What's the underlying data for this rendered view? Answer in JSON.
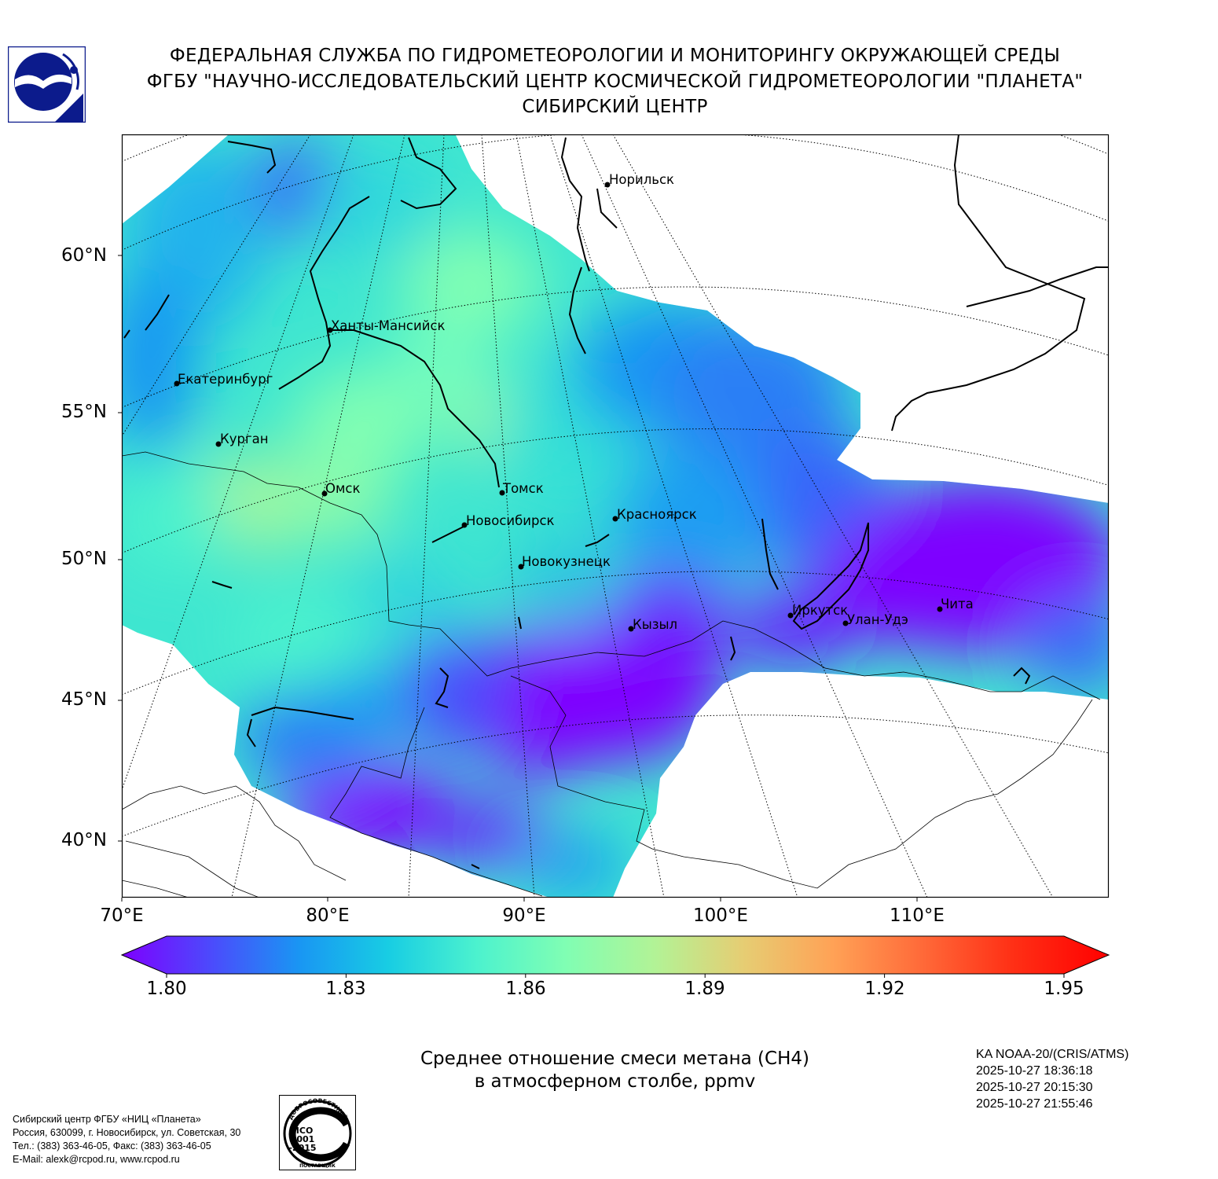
{
  "header": {
    "line1": "ФЕДЕРАЛЬНАЯ СЛУЖБА ПО ГИДРОМЕТЕОРОЛОГИИ И МОНИТОРИНГУ ОКРУЖАЮЩЕЙ СРЕДЫ",
    "line2": "ФГБУ \"НАУЧНО-ИССЛЕДОВАТЕЛЬСКИЙ ЦЕНТР КОСМИЧЕСКОЙ ГИДРОМЕТЕОРОЛОГИИ \"ПЛАНЕТА\"",
    "line3": "СИБИРСКИЙ ЦЕНТР"
  },
  "map": {
    "lat_labels": [
      "60°N",
      "55°N",
      "50°N",
      "45°N",
      "40°N"
    ],
    "lon_labels": [
      "70°E",
      "80°E",
      "90°E",
      "100°E",
      "110°E"
    ],
    "cities": [
      "Норильск",
      "Ханты-Мансийск",
      "Екатеринбург",
      "Курган",
      "Омск",
      "Томск",
      "Новосибирск",
      "Красноярск",
      "Новокузнецк",
      "Кызыл",
      "Иркутск",
      "Улан-Удэ",
      "Чита"
    ]
  },
  "colorbar": {
    "ticks": [
      "1.80",
      "1.83",
      "1.86",
      "1.89",
      "1.92",
      "1.95"
    ],
    "min": 1.8,
    "max": 1.95,
    "colors": [
      "#7e00ff",
      "#4c4afc",
      "#1996f3",
      "#18cde3",
      "#4cf2ce",
      "#80feb3",
      "#b2f396",
      "#e6cd73",
      "#ffa256",
      "#ff6a39",
      "#ff3116",
      "#ff0000"
    ]
  },
  "product": {
    "title_line1": "Среднее отношение смеси метана (CH4)",
    "title_line2": "в атмосферном столбе, ppmv"
  },
  "satellite": {
    "name": "KA NOAA-20/(CRIS/ATMS)",
    "times": [
      "2025-10-27 18:36:18",
      "2025-10-27 20:15:30",
      "2025-10-27 21:55:46"
    ]
  },
  "contacts": {
    "line1": "Сибирский центр ФГБУ «НИЦ «Планета»",
    "line2": "Россия, 630099, г. Новосибирск, ул. Советская, 30",
    "line3": "Тел.: (383) 363-46-05, Факс: (383) 363-46-05",
    "line4": "E-Mail: alexk@rcpod.ru, www.rcpod.ru"
  },
  "iso_badge": {
    "top": "ДОБРОСОВЕСТНЫЙ",
    "std1": "ИСО",
    "std2": "9001",
    "std3": "-2015",
    "bottom": "ПОСТАВЩИК"
  }
}
